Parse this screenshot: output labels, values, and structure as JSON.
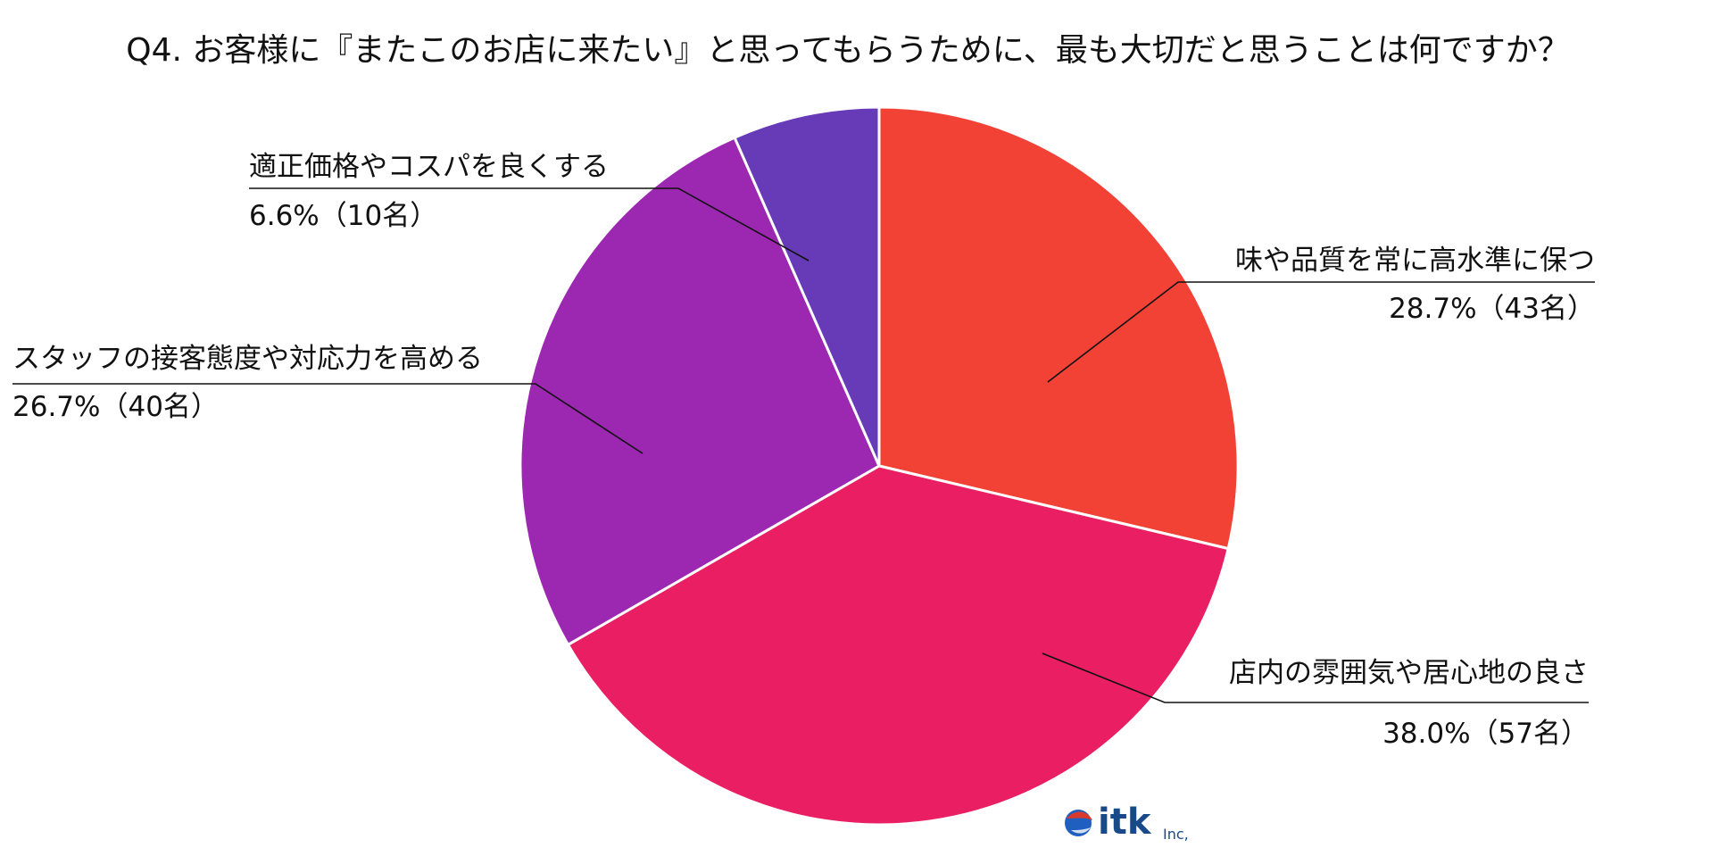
{
  "chart_data": {
    "type": "pie",
    "title": "Q4. お客様に『またこのお店に来たい』と思ってもらうために、最も大切だと思うことは何ですか？",
    "slices": [
      {
        "label": "味や品質を常に高水準に保つ",
        "value_text": "28.7%（43名）",
        "percent": 28.7,
        "count": 43,
        "color": "#F24236"
      },
      {
        "label": "店内の雰囲気や居心地の良さ",
        "value_text": "38.0%（57名）",
        "percent": 38.0,
        "count": 57,
        "color": "#E91E63"
      },
      {
        "label": "スタッフの接客態度や対応力を高める",
        "value_text": "26.7%（40名）",
        "percent": 26.7,
        "count": 40,
        "color": "#9C27B0"
      },
      {
        "label": "適正価格やコスパを良くする",
        "value_text": "6.6%（10名）",
        "percent": 6.6,
        "count": 10,
        "color": "#673AB7"
      }
    ]
  },
  "logo": {
    "main": "itk",
    "suffix": "Inc,"
  }
}
